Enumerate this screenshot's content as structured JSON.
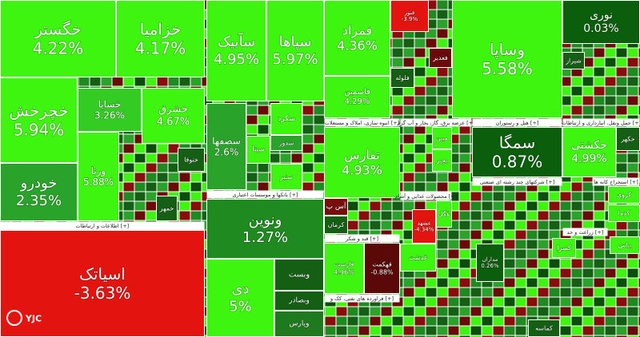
{
  "chart_data": {
    "type": "treemap",
    "watermark": "YJC",
    "sectors": [
      "اطلاعات و ارتباطات [+]",
      "بانکها و موسسات اعتباری [+]",
      "انبوه سازی، املاک و مستغلات [+]",
      "عرضه برق، گاز، بخار و آب گرم [+]",
      "هتل و رستوران [+]",
      "حمل ونقل، انبارداری و ارتباطات [+]",
      "محصولات غذایی و آشام [+]",
      "قند و شکر [+]",
      "شرکتهای چند رشته ای صنعتی [+]",
      "فراورده های نفتی، کک و [+]",
      "استخراج کانه ها [+]",
      "زراعت و خد [+]"
    ],
    "tiles": [
      {
        "name": "خگستر",
        "value": 4.22,
        "value_label": "4.22%",
        "color": "#3df50f"
      },
      {
        "name": "خزامیا",
        "value": 4.17,
        "value_label": "4.17%",
        "color": "#3df50f"
      },
      {
        "name": "خچرخش",
        "value": 5.94,
        "value_label": "5.94%",
        "color": "#3df50f"
      },
      {
        "name": "خساپا",
        "value": 3.26,
        "value_label": "3.26%",
        "color": "#33cc22"
      },
      {
        "name": "خشرق",
        "value": 4.67,
        "value_label": "4.67%",
        "color": "#3df50f"
      },
      {
        "name": "خودرو",
        "value": 2.35,
        "value_label": "2.35%",
        "color": "#2aa32a"
      },
      {
        "name": "ورنا",
        "value": 5.88,
        "value_label": "5.88%",
        "color": "#3df50f"
      },
      {
        "name": "ختوقا",
        "color": "#145f14"
      },
      {
        "name": "خمهر",
        "color": "#145f14"
      },
      {
        "name": "اسیاتک",
        "value": -3.63,
        "value_label": "-3.63%",
        "color": "#e3130f"
      },
      {
        "name": "سآبیک",
        "value": 4.95,
        "value_label": "4.95%",
        "color": "#3df50f"
      },
      {
        "name": "سپاها",
        "value": 5.97,
        "value_label": "5.97%",
        "color": "#3df50f"
      },
      {
        "name": "سصفها",
        "value": 2.6,
        "value_label": "2.6%",
        "color": "#2aa32a"
      },
      {
        "name": "سکرد",
        "color": "#3df50f"
      },
      {
        "name": "سیتا",
        "color": "#3df50f"
      },
      {
        "name": "سدور",
        "color": "#2aa32a"
      },
      {
        "name": "سنیر",
        "color": "#3df50f"
      },
      {
        "name": "ونوین",
        "value": 1.27,
        "value_label": "1.27%",
        "color": "#1f8a1f"
      },
      {
        "name": "دی",
        "value": 5,
        "value_label": "5%",
        "color": "#3df50f"
      },
      {
        "name": "وبست",
        "color": "#145f14"
      },
      {
        "name": "وبصادر",
        "color": "#145f14"
      },
      {
        "name": "وپارس",
        "color": "#1f7a1f"
      },
      {
        "name": "فمراد",
        "value": 4.36,
        "value_label": "4.36%",
        "color": "#3df50f"
      },
      {
        "name": "فاسمین",
        "value": 4.29,
        "value_label": "4.29%",
        "color": "#3df50f"
      },
      {
        "name": "فنوز",
        "value": -3.9,
        "value_label": "-3.9%",
        "color": "#e3130f"
      },
      {
        "name": "فغدیر",
        "color": "#6b0a0a"
      },
      {
        "name": "فلوله",
        "color": "#145f14"
      },
      {
        "name": "تفارس",
        "value": 4.93,
        "value_label": "4.93%",
        "color": "#3df50f"
      },
      {
        "name": "آس پ",
        "color": "#7a0c0c"
      },
      {
        "name": "کرمان",
        "color": "#145f14"
      },
      {
        "name": "فارست",
        "value": 4.96,
        "value_label": "4.96%",
        "color": "#3df50f"
      },
      {
        "name": "قهکمت",
        "value": -0.88,
        "value_label": "-0.88%",
        "color": "#5a0808"
      },
      {
        "name": "مبین",
        "color": "#3df50f"
      },
      {
        "name": "بجیر",
        "color": "#3df50f"
      },
      {
        "name": "غگل",
        "color": "#3df50f"
      },
      {
        "name": "غشهد",
        "value": -4.34,
        "value_label": "-4.34%",
        "color": "#e3130f"
      },
      {
        "name": "غدشت",
        "color": "#3df50f"
      },
      {
        "name": "وساپا",
        "value": 5.58,
        "value_label": "5.58%",
        "color": "#3df50f"
      },
      {
        "name": "سمگا",
        "value": 0.87,
        "value_label": "0.87%",
        "color": "#0b5e0b"
      },
      {
        "name": "نوری",
        "value": 0.03,
        "value_label": "0.03%",
        "color": "#0b5e0b"
      },
      {
        "name": "حکشتی",
        "value": 4.99,
        "value_label": "4.99%",
        "color": "#3df50f"
      },
      {
        "name": "حکهر",
        "color": "#145f14"
      },
      {
        "name": "کروی",
        "color": "#3df50f"
      },
      {
        "name": "کدما",
        "color": "#3df50f"
      },
      {
        "name": "مداران",
        "value": 0.26,
        "value_label": "0.26%",
        "color": "#0b5e0b"
      },
      {
        "name": "کماسه",
        "color": "#145f14"
      },
      {
        "name": "کسرا",
        "color": "#3df50f"
      },
      {
        "name": "بیاس",
        "color": "#3df50f"
      },
      {
        "name": "شیراز",
        "color": "#145f14"
      }
    ]
  }
}
